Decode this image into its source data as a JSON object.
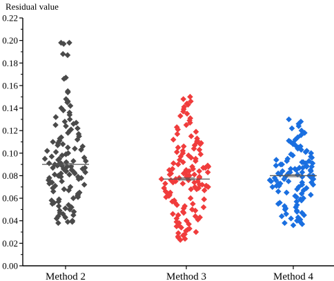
{
  "chart_data": {
    "type": "scatter",
    "ylabel": "Residual value",
    "ylim": [
      0,
      0.22
    ],
    "yticks": [
      "0.00",
      "0.02",
      "0.04",
      "0.06",
      "0.08",
      "0.10",
      "0.12",
      "0.14",
      "0.16",
      "0.18",
      "0.20",
      "0.22"
    ],
    "grid": false,
    "legend": "none",
    "categories": [
      "Method 2",
      "Method 3",
      "Method 4"
    ],
    "series": [
      {
        "name": "Method 2",
        "color": "#4a4a4a",
        "mean": 0.09,
        "values": [
          0.198,
          0.198,
          0.197,
          0.188,
          0.187,
          0.167,
          0.166,
          0.155,
          0.154,
          0.148,
          0.146,
          0.145,
          0.142,
          0.14,
          0.138,
          0.136,
          0.134,
          0.132,
          0.13,
          0.128,
          0.127,
          0.126,
          0.125,
          0.124,
          0.122,
          0.121,
          0.12,
          0.118,
          0.117,
          0.115,
          0.114,
          0.113,
          0.112,
          0.111,
          0.11,
          0.109,
          0.108,
          0.107,
          0.106,
          0.105,
          0.104,
          0.103,
          0.102,
          0.101,
          0.1,
          0.099,
          0.098,
          0.097,
          0.096,
          0.095,
          0.095,
          0.094,
          0.093,
          0.093,
          0.092,
          0.091,
          0.091,
          0.09,
          0.09,
          0.089,
          0.089,
          0.088,
          0.088,
          0.087,
          0.087,
          0.086,
          0.086,
          0.085,
          0.085,
          0.084,
          0.084,
          0.083,
          0.083,
          0.082,
          0.082,
          0.081,
          0.081,
          0.08,
          0.08,
          0.079,
          0.079,
          0.078,
          0.078,
          0.077,
          0.076,
          0.075,
          0.074,
          0.073,
          0.072,
          0.071,
          0.07,
          0.069,
          0.068,
          0.067,
          0.066,
          0.065,
          0.064,
          0.063,
          0.062,
          0.061,
          0.06,
          0.059,
          0.058,
          0.057,
          0.056,
          0.055,
          0.054,
          0.053,
          0.052,
          0.051,
          0.05,
          0.049,
          0.048,
          0.047,
          0.046,
          0.045,
          0.044,
          0.043,
          0.042,
          0.04,
          0.039,
          0.039,
          0.038
        ]
      },
      {
        "name": "Method 3",
        "color": "#f03c3c",
        "mean": 0.077,
        "values": [
          0.15,
          0.148,
          0.146,
          0.144,
          0.143,
          0.141,
          0.139,
          0.137,
          0.135,
          0.133,
          0.131,
          0.129,
          0.127,
          0.125,
          0.123,
          0.121,
          0.119,
          0.117,
          0.115,
          0.113,
          0.112,
          0.111,
          0.11,
          0.109,
          0.108,
          0.107,
          0.106,
          0.105,
          0.104,
          0.103,
          0.102,
          0.101,
          0.1,
          0.099,
          0.098,
          0.097,
          0.096,
          0.095,
          0.094,
          0.093,
          0.092,
          0.091,
          0.09,
          0.089,
          0.088,
          0.088,
          0.087,
          0.087,
          0.086,
          0.086,
          0.085,
          0.085,
          0.084,
          0.084,
          0.083,
          0.083,
          0.082,
          0.082,
          0.081,
          0.081,
          0.08,
          0.08,
          0.079,
          0.079,
          0.078,
          0.078,
          0.077,
          0.077,
          0.076,
          0.076,
          0.075,
          0.075,
          0.074,
          0.074,
          0.073,
          0.073,
          0.072,
          0.072,
          0.071,
          0.071,
          0.07,
          0.07,
          0.069,
          0.069,
          0.068,
          0.068,
          0.067,
          0.066,
          0.065,
          0.064,
          0.063,
          0.062,
          0.061,
          0.06,
          0.059,
          0.058,
          0.057,
          0.056,
          0.055,
          0.054,
          0.053,
          0.052,
          0.051,
          0.05,
          0.049,
          0.048,
          0.047,
          0.046,
          0.045,
          0.044,
          0.043,
          0.042,
          0.041,
          0.04,
          0.039,
          0.038,
          0.037,
          0.036,
          0.035,
          0.034,
          0.033,
          0.032,
          0.031,
          0.03,
          0.029,
          0.028,
          0.027,
          0.026,
          0.025,
          0.024,
          0.023
        ]
      },
      {
        "name": "Method 4",
        "color": "#1a6fe0",
        "mean": 0.08,
        "values": [
          0.13,
          0.128,
          0.126,
          0.124,
          0.122,
          0.12,
          0.118,
          0.116,
          0.114,
          0.112,
          0.111,
          0.11,
          0.109,
          0.108,
          0.107,
          0.106,
          0.105,
          0.104,
          0.103,
          0.102,
          0.101,
          0.1,
          0.099,
          0.098,
          0.097,
          0.096,
          0.095,
          0.094,
          0.093,
          0.093,
          0.092,
          0.092,
          0.091,
          0.091,
          0.09,
          0.09,
          0.089,
          0.089,
          0.088,
          0.088,
          0.087,
          0.087,
          0.086,
          0.086,
          0.085,
          0.085,
          0.084,
          0.084,
          0.083,
          0.083,
          0.082,
          0.082,
          0.081,
          0.081,
          0.08,
          0.08,
          0.079,
          0.079,
          0.078,
          0.078,
          0.077,
          0.077,
          0.076,
          0.076,
          0.075,
          0.075,
          0.074,
          0.074,
          0.073,
          0.073,
          0.072,
          0.072,
          0.071,
          0.071,
          0.07,
          0.07,
          0.069,
          0.068,
          0.067,
          0.066,
          0.065,
          0.064,
          0.063,
          0.062,
          0.061,
          0.06,
          0.059,
          0.058,
          0.057,
          0.056,
          0.055,
          0.054,
          0.053,
          0.052,
          0.051,
          0.05,
          0.049,
          0.048,
          0.047,
          0.046,
          0.045,
          0.044,
          0.043,
          0.042,
          0.041,
          0.04,
          0.039,
          0.038,
          0.037,
          0.036
        ]
      }
    ]
  }
}
